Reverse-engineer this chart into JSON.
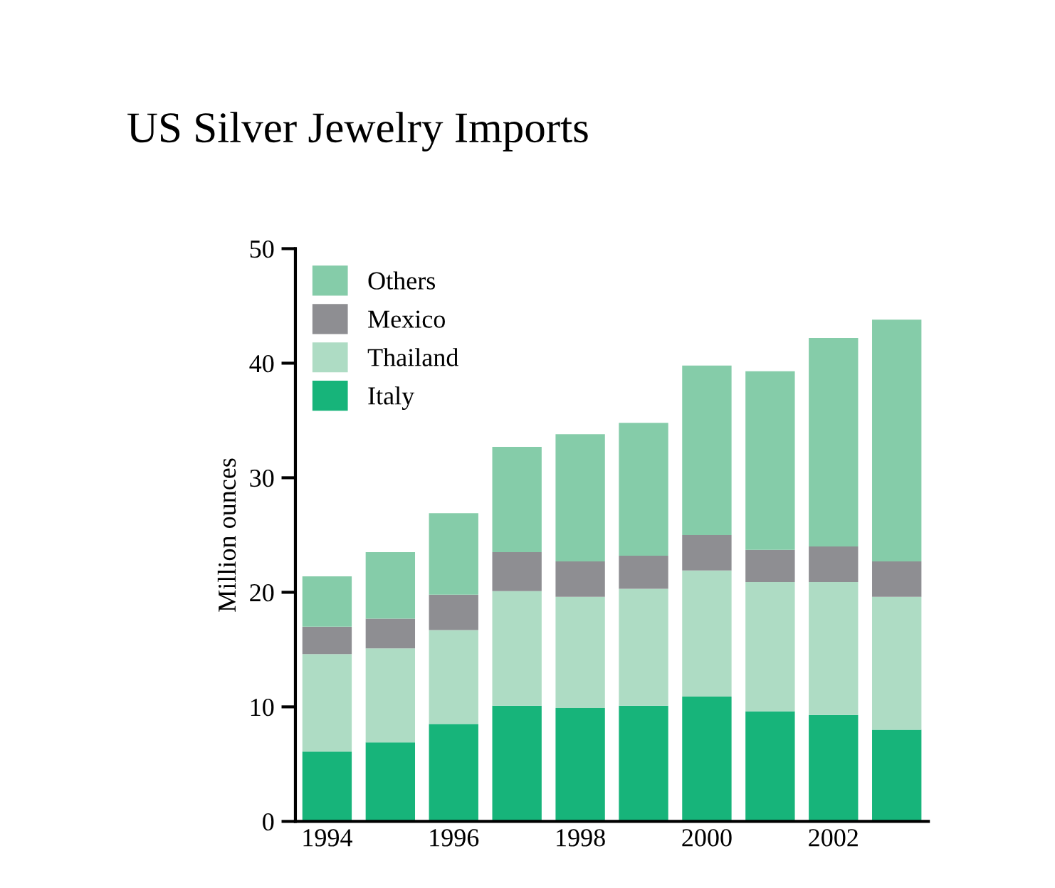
{
  "chart_data": {
    "type": "bar",
    "title": "US Silver Jewelry Imports",
    "ylabel": "Million ounces",
    "stacked": true,
    "categories": [
      "1994",
      null,
      "1996",
      null,
      "1998",
      null,
      "2000",
      null,
      "2002",
      null
    ],
    "series": [
      {
        "name": "Italy",
        "color": "#17b47a",
        "values": [
          6.1,
          6.9,
          8.5,
          10.1,
          9.9,
          10.1,
          10.9,
          9.6,
          9.3,
          8.0
        ]
      },
      {
        "name": "Thailand",
        "color": "#aedcc4",
        "values": [
          8.5,
          8.2,
          8.2,
          10.0,
          9.7,
          10.2,
          11.0,
          11.3,
          11.6,
          11.6
        ]
      },
      {
        "name": "Mexico",
        "color": "#8e8e92",
        "values": [
          2.4,
          2.6,
          3.1,
          3.4,
          3.1,
          2.9,
          3.1,
          2.8,
          3.1,
          3.1
        ]
      },
      {
        "name": "Others",
        "color": "#85cca9",
        "values": [
          4.4,
          5.8,
          7.1,
          9.2,
          11.1,
          11.6,
          14.8,
          15.6,
          18.2,
          21.1
        ]
      }
    ],
    "ylim": [
      0,
      50
    ],
    "yticks": [
      0,
      10,
      20,
      30,
      40,
      50
    ],
    "grid": false,
    "legend": "top left"
  }
}
